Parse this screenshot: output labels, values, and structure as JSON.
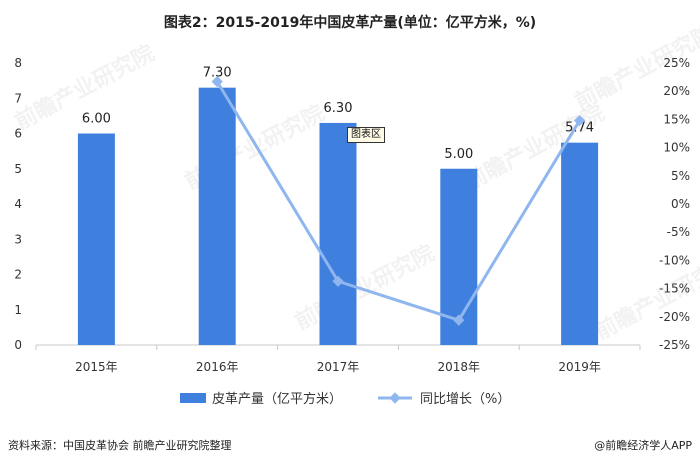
{
  "title": "图表2：2015-2019年中国皮革产量(单位：亿平方米，%)",
  "source_left": "资料来源：中国皮革协会 前瞻产业研究院整理",
  "source_right": "@前瞻经济学人APP",
  "tooltip": "图表区",
  "watermark": "前瞻产业研究院",
  "colors": {
    "bar": "#3f7fde",
    "line": "#8fb6ee",
    "axis": "#c8c8c8",
    "text": "#333333"
  },
  "chart_data": {
    "type": "bar",
    "categories": [
      "2015年",
      "2016年",
      "2017年",
      "2018年",
      "2019年"
    ],
    "series": [
      {
        "name": "皮革产量（亿平方米）",
        "type": "bar",
        "axis": "left",
        "values": [
          6.0,
          7.3,
          6.3,
          5.0,
          5.74
        ],
        "data_labels": [
          "6.00",
          "7.30",
          "6.30",
          "5.00",
          "5.74"
        ]
      },
      {
        "name": "同比增长（%）",
        "type": "line",
        "axis": "right",
        "values": [
          null,
          21.7,
          -13.7,
          -20.6,
          14.8
        ]
      }
    ],
    "y_left": {
      "min": 0,
      "max": 8,
      "step": 1,
      "ticks": [
        "0",
        "1",
        "2",
        "3",
        "4",
        "5",
        "6",
        "7",
        "8"
      ]
    },
    "y_right": {
      "min": -25,
      "max": 25,
      "step": 5,
      "ticks": [
        "-25%",
        "-20%",
        "-15%",
        "-10%",
        "-5%",
        "0%",
        "5%",
        "10%",
        "15%",
        "20%",
        "25%"
      ]
    },
    "legend_position": "bottom",
    "grid": false
  }
}
